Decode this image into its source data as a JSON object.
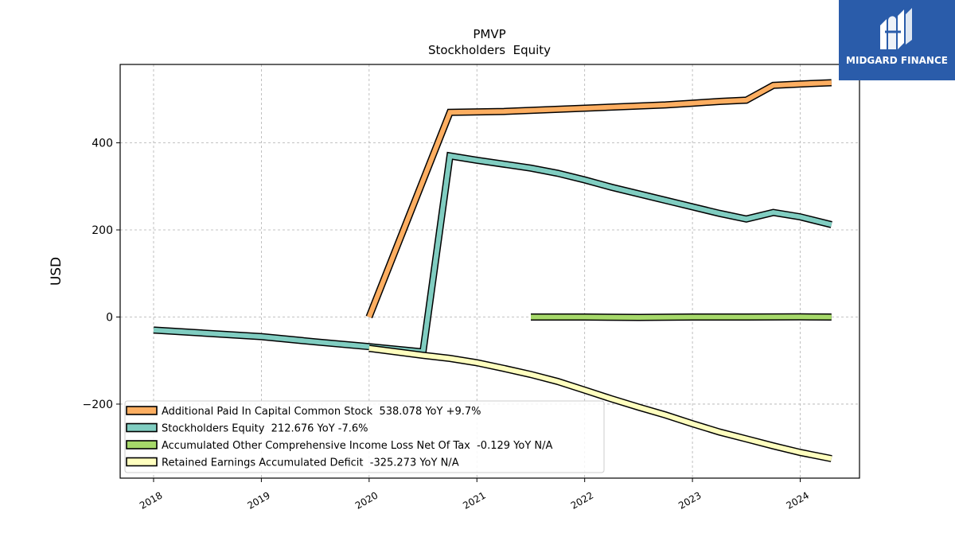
{
  "logo": {
    "text": "MIDGARD FINANCE",
    "icon": "midgard-logo-icon",
    "background": "#2a5caa"
  },
  "chart_data": {
    "type": "line",
    "title": "PMVP",
    "subtitle": "Stockholders  Equity",
    "xlabel": "",
    "ylabel": "USD",
    "xlim": [
      2017.69,
      2024.55
    ],
    "ylim": [
      -370,
      580
    ],
    "x_ticks": [
      "2018",
      "2019",
      "2020",
      "2021",
      "2022",
      "2023",
      "2024"
    ],
    "y_ticks": [
      -200,
      0,
      200,
      400
    ],
    "y_tick_labels": [
      "−200",
      "0",
      "200",
      "400"
    ],
    "grid": true,
    "legend_position": "lower-left",
    "series": [
      {
        "name": "Additional Paid In Capital Common Stock  538.078 YoY +9.7%",
        "color": "#fdae61",
        "points": [
          [
            2020.0,
            0
          ],
          [
            2020.75,
            470
          ],
          [
            2021.25,
            472
          ],
          [
            2021.75,
            477
          ],
          [
            2022.25,
            482
          ],
          [
            2022.75,
            487
          ],
          [
            2023.0,
            491
          ],
          [
            2023.25,
            495
          ],
          [
            2023.5,
            498
          ],
          [
            2023.75,
            532
          ],
          [
            2024.0,
            535
          ],
          [
            2024.29,
            538
          ]
        ]
      },
      {
        "name": "Stockholders Equity  212.676 YoY -7.6%",
        "color": "#80cdc1",
        "points": [
          [
            2018.0,
            -30
          ],
          [
            2019.0,
            -45
          ],
          [
            2019.5,
            -57
          ],
          [
            2020.0,
            -68
          ],
          [
            2020.5,
            -80
          ],
          [
            2020.75,
            370
          ],
          [
            2021.0,
            360
          ],
          [
            2021.5,
            342
          ],
          [
            2021.75,
            330
          ],
          [
            2022.0,
            315
          ],
          [
            2022.25,
            298
          ],
          [
            2022.75,
            268
          ],
          [
            2023.0,
            253
          ],
          [
            2023.25,
            238
          ],
          [
            2023.5,
            225
          ],
          [
            2023.75,
            240
          ],
          [
            2024.0,
            230
          ],
          [
            2024.29,
            212
          ]
        ]
      },
      {
        "name": "Accumulated Other Comprehensive Income Loss Net Of Tax  -0.129 YoY N/A",
        "color": "#a6d96a",
        "points": [
          [
            2021.5,
            0
          ],
          [
            2022.0,
            0
          ],
          [
            2022.5,
            -1
          ],
          [
            2023.0,
            0
          ],
          [
            2023.5,
            0
          ],
          [
            2024.0,
            0.3
          ],
          [
            2024.29,
            -0.129
          ]
        ]
      },
      {
        "name": "Retained Earnings Accumulated Deficit  -325.273 YoY N/A",
        "color": "#ffffbf",
        "points": [
          [
            2020.0,
            -72
          ],
          [
            2020.5,
            -88
          ],
          [
            2020.75,
            -95
          ],
          [
            2021.0,
            -105
          ],
          [
            2021.25,
            -118
          ],
          [
            2021.5,
            -132
          ],
          [
            2021.75,
            -148
          ],
          [
            2022.0,
            -168
          ],
          [
            2022.25,
            -188
          ],
          [
            2022.5,
            -207
          ],
          [
            2022.75,
            -225
          ],
          [
            2023.0,
            -245
          ],
          [
            2023.25,
            -264
          ],
          [
            2023.5,
            -280
          ],
          [
            2023.75,
            -296
          ],
          [
            2024.0,
            -311
          ],
          [
            2024.29,
            -325.273
          ]
        ]
      }
    ]
  }
}
